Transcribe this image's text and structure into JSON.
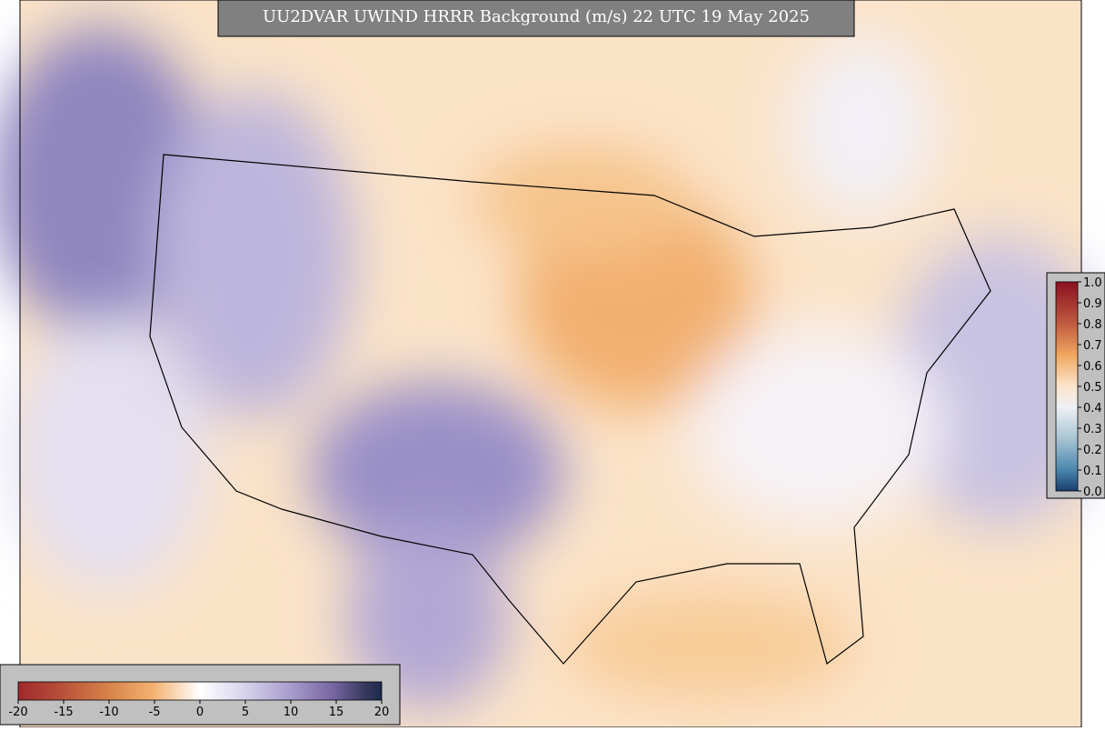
{
  "title": "UU2DVAR UWIND HRRR Background (m/s) 22 UTC 19 May 2025",
  "colorbars": {
    "horizontal": {
      "ticks": [
        "-20",
        "-15",
        "-10",
        "-5",
        "0",
        "5",
        "10",
        "15",
        "20"
      ]
    },
    "vertical": {
      "ticks": [
        "1.0",
        "0.9",
        "0.8",
        "0.7",
        "0.6",
        "0.5",
        "0.4",
        "0.3",
        "0.2",
        "0.1",
        "0.0"
      ]
    }
  }
}
